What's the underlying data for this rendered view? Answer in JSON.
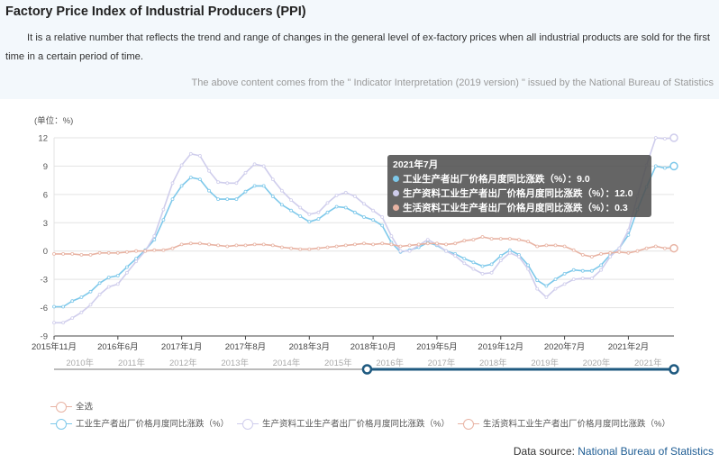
{
  "header": {
    "title": "Factory Price Index of Industrial Producers (PPI)",
    "description": "It is a relative number that reflects the trend and range of changes in the general level of ex-factory prices when all industrial products are sold for the first time in a certain period of time.",
    "source_note": "The above content comes from the \" Indicator Interpretation (2019 version) \" issued by the National Bureau of Statistics"
  },
  "chart_data": {
    "type": "line",
    "unit_label": "(单位：%)",
    "ylim": [
      -9,
      12
    ],
    "yticks": [
      12,
      9,
      6,
      3,
      0,
      -3,
      -6,
      -9
    ],
    "ytick_labels": [
      "12",
      "9",
      "6",
      "3",
      "0",
      "-3",
      "-6",
      "-9"
    ],
    "xlim": [
      "2015-11",
      "2021-07"
    ],
    "xtick_labels": [
      "2015年11月",
      "2016年6月",
      "2017年1月",
      "2017年8月",
      "2018年3月",
      "2018年10月",
      "2019年5月",
      "2019年12月",
      "2020年7月",
      "2021年2月"
    ],
    "grid": true,
    "series": [
      {
        "name": "工业生产者出厂价格月度同比涨跌（%）",
        "color": "#7dc8ea",
        "values": [
          -5.9,
          -5.9,
          -5.3,
          -4.9,
          -4.3,
          -3.4,
          -2.8,
          -2.6,
          -1.7,
          -0.8,
          0.1,
          1.2,
          3.3,
          5.5,
          6.9,
          7.8,
          7.6,
          6.4,
          5.5,
          5.5,
          5.5,
          6.3,
          6.9,
          6.9,
          5.8,
          4.9,
          4.3,
          3.7,
          3.1,
          3.4,
          4.1,
          4.7,
          4.6,
          4.1,
          3.6,
          3.3,
          2.7,
          0.9,
          -0.1,
          0.1,
          0.4,
          0.9,
          0.6,
          0.0,
          -0.3,
          -0.8,
          -1.2,
          -1.6,
          -1.4,
          -0.5,
          0.1,
          -0.4,
          -1.5,
          -3.1,
          -3.7,
          -3.0,
          -2.4,
          -2.0,
          -2.1,
          -2.1,
          -1.5,
          -0.4,
          0.3,
          1.7,
          4.4,
          6.8,
          9.0,
          8.8,
          9.0
        ]
      },
      {
        "name": "生产资料工业生产者出厂价格月度同比涨跌（%）",
        "color": "#cfcdec",
        "values": [
          -7.6,
          -7.6,
          -7.1,
          -6.5,
          -5.7,
          -4.6,
          -3.8,
          -3.5,
          -2.3,
          -1.1,
          0.0,
          1.6,
          4.4,
          7.2,
          9.1,
          10.3,
          10.1,
          8.5,
          7.3,
          7.2,
          7.2,
          8.3,
          9.2,
          9.0,
          7.6,
          6.4,
          5.4,
          4.6,
          3.9,
          4.1,
          5.1,
          5.9,
          6.2,
          5.8,
          5.0,
          4.3,
          3.6,
          1.6,
          0.0,
          0.0,
          0.6,
          1.2,
          0.7,
          0.0,
          -0.5,
          -1.3,
          -1.9,
          -2.4,
          -2.3,
          -1.0,
          -0.2,
          -0.6,
          -1.9,
          -4.0,
          -4.9,
          -4.0,
          -3.5,
          -3.0,
          -2.9,
          -2.9,
          -2.0,
          -0.6,
          0.3,
          2.2,
          5.8,
          9.1,
          12.0,
          11.9,
          12.0
        ]
      },
      {
        "name": "生活资料工业生产者出厂价格月度同比涨跌（%）",
        "color": "#e8b3a3",
        "values": [
          -0.3,
          -0.3,
          -0.3,
          -0.4,
          -0.4,
          -0.2,
          -0.2,
          -0.2,
          -0.1,
          0.0,
          0.0,
          0.1,
          0.1,
          0.3,
          0.7,
          0.8,
          0.8,
          0.7,
          0.6,
          0.5,
          0.6,
          0.6,
          0.7,
          0.7,
          0.6,
          0.4,
          0.3,
          0.2,
          0.2,
          0.3,
          0.4,
          0.5,
          0.6,
          0.7,
          0.8,
          0.7,
          0.8,
          0.7,
          0.5,
          0.6,
          0.7,
          0.8,
          0.8,
          0.7,
          0.8,
          1.1,
          1.2,
          1.5,
          1.3,
          1.3,
          1.3,
          1.2,
          1.0,
          0.5,
          0.6,
          0.6,
          0.5,
          0.1,
          -0.4,
          -0.6,
          -0.3,
          -0.2,
          -0.1,
          -0.2,
          0.0,
          0.3,
          0.5,
          0.3,
          0.3
        ]
      }
    ],
    "tooltip": {
      "title": "2021年7月",
      "rows": [
        {
          "label": "工业生产者出厂价格月度同比涨跌（%）：9.0",
          "color": "#7dc8ea"
        },
        {
          "label": "生产资料工业生产者出厂价格月度同比涨跌（%）：12.0",
          "color": "#cfcdec"
        },
        {
          "label": "生活资料工业生产者出厂价格月度同比涨跌（%）：0.3",
          "color": "#e8b3a3"
        }
      ]
    },
    "timeline": {
      "years": [
        "2010年",
        "2011年",
        "2012年",
        "2013年",
        "2014年",
        "2015年",
        "2016年",
        "2017年",
        "2018年",
        "2019年",
        "2020年",
        "2021年"
      ],
      "selected_start_fraction": 0.505,
      "selected_end_fraction": 1.0
    }
  },
  "legend": {
    "select_all": "全选",
    "items": [
      {
        "label": "工业生产者出厂价格月度同比涨跌（%）",
        "color": "#7dc8ea"
      },
      {
        "label": "生产资料工业生产者出厂价格月度同比涨跌（%）",
        "color": "#cfcdec"
      },
      {
        "label": "生活资料工业生产者出厂价格月度同比涨跌（%）",
        "color": "#e8b3a3"
      }
    ],
    "select_all_color": "#e8b3a3"
  },
  "footer": {
    "prefix": "Data source: ",
    "link": "National Bureau of Statistics"
  }
}
